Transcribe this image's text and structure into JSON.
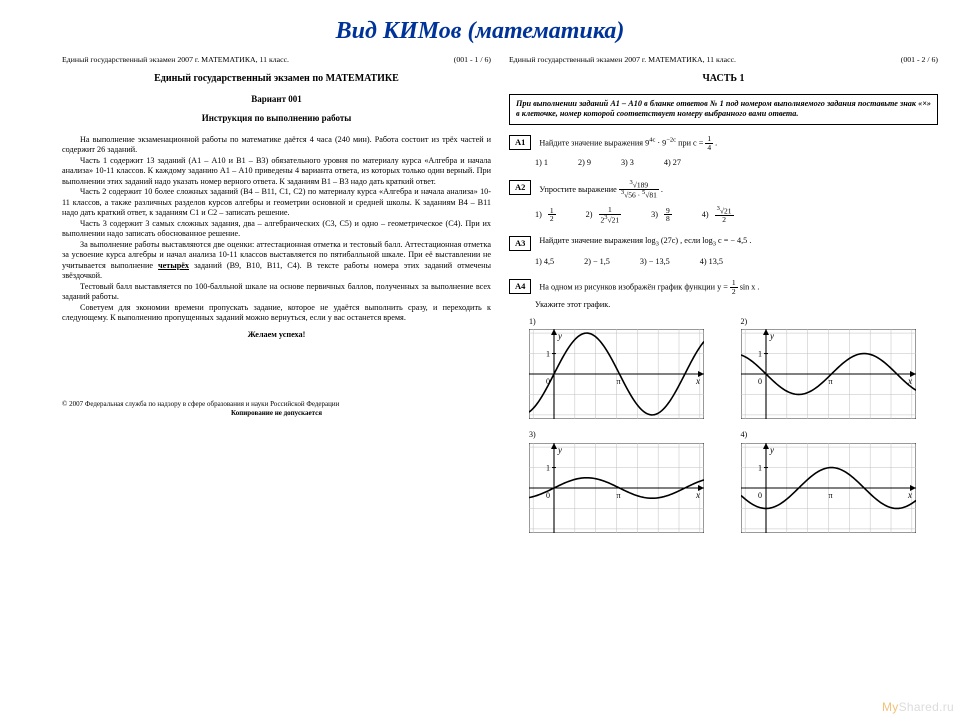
{
  "slide": {
    "title": "Вид КИМов (математика)"
  },
  "left": {
    "header_left": "Единый государственный экзамен 2007 г.   МАТЕМАТИКА, 11 класс.",
    "header_right": "(001 - 1 / 6)",
    "title": "Единый государственный экзамен по МАТЕМАТИКЕ",
    "variant": "Вариант 001",
    "instr_title": "Инструкция по выполнению работы",
    "p1": "На выполнение экзаменационной работы по математике даётся 4 часа (240 мин). Работа состоит из трёх частей и содержит 26 заданий.",
    "p2": "Часть 1 содержит 13 заданий (А1 – А10 и В1 – В3) обязательного уровня по материалу курса «Алгебра и начала анализа» 10-11 классов. К каждому заданию А1 – А10 приведены 4 варианта ответа, из которых только один верный. При выполнении этих заданий надо указать номер верного ответа. К заданиям В1 – В3 надо дать краткий ответ.",
    "p3": "Часть 2 содержит 10 более сложных заданий (В4 – В11, С1, С2) по материалу курса «Алгебра и начала анализа» 10-11 классов, а также различных разделов курсов алгебры и геометрии основной и средней школы. К заданиям В4 – В11 надо дать краткий ответ, к заданиям С1 и С2 – записать решение.",
    "p4": "Часть 3 содержит 3 самых сложных задания, два – алгебраических (С3, С5) и одно – геометрическое (С4). При их выполнении надо записать обоснованное решение.",
    "p5_a": "За выполнение работы выставляются две оценки: аттестационная отметка и тестовый балл. Аттестационная отметка за усвоение курса алгебры и начал анализа 10-11 классов выставляется по пятибалльной шкале. При её выставлении не учитывается выполнение ",
    "p5_b": "четырёх",
    "p5_c": " заданий (В9, В10, В11, С4). В тексте работы номера этих заданий отмечены звёздочкой.",
    "p6": "Тестовый балл выставляется по 100-балльной шкале на основе первичных баллов, полученных за выполнение всех заданий работы.",
    "p7": "Советуем для экономии времени пропускать задание, которое не удаётся выполнить сразу, и переходить к следующему. К выполнению пропущенных заданий можно вернуться, если у вас останется время.",
    "wish": "Желаем успеха!",
    "copyright1": "© 2007 Федеральная служба по надзору в сфере образования и науки Российской Федерации",
    "copyright2": "Копирование не допускается"
  },
  "right": {
    "header_left": "Единый государственный экзамен 2007 г.   МАТЕМАТИКА, 11 класс.",
    "header_right": "(001 - 2 / 6)",
    "part_title": "ЧАСТЬ 1",
    "box": "При выполнении заданий А1 – А10 в бланке ответов № 1 под номером выполняемого задания поставьте знак «×» в клеточке, номер которой соответствует номеру выбранного вами ответа.",
    "A1": {
      "num": "A1",
      "text_a": "Найдите значение выражения  9",
      "exp1": "4c",
      "dot": " · 9",
      "exp2": "−2c",
      "text_b": "  при  c = ",
      "frac_n": "1",
      "frac_d": "4",
      "tail": " .",
      "o1": "1)  1",
      "o2": "2)  9",
      "o3": "3)  3",
      "o4": "4)  27"
    },
    "A2": {
      "num": "A2",
      "text": "Упростите выражение ",
      "big_n_root": "3",
      "big_n_rad": "189",
      "big_d_r1_root": "3",
      "big_d_r1_rad": "56",
      "big_d_r2_root": "5",
      "big_d_r2_rad": "81",
      "tail": " .",
      "o1_n": "1",
      "o1_d": "2",
      "o2_n": "1",
      "o2_d_a": "2",
      "o2_root": "3",
      "o2_rad": "21",
      "o3_n": "9",
      "o3_d": "8",
      "o4_root": "3",
      "o4_rad": "21",
      "o4_d": "2"
    },
    "A3": {
      "num": "A3",
      "text_a": "Найдите значение выражения  log",
      "base": "3",
      "arg": " (27c) , если  log",
      "base2": "3",
      "tail": " c = − 4,5 .",
      "o1": "1)  4,5",
      "o2": "2)  − 1,5",
      "o3": "3)  − 13,5",
      "o4": "4)  13,5"
    },
    "A4": {
      "num": "A4",
      "text_a": "На одном из рисунков изображён график функции  y = ",
      "frac_n": "1",
      "frac_d": "2",
      "text_b": " sin x .",
      "prompt": "Укажите этот график.",
      "g1": "1)",
      "g2": "2)",
      "g3": "3)",
      "g4": "4)"
    },
    "graphs": {
      "width": 175,
      "height": 90,
      "bg": "#ffffff",
      "grid": "#bfbfbf",
      "axis": "#000000",
      "curve": "#000000",
      "xmin": -1.2,
      "xmax": 7.2,
      "ymin": -2.2,
      "ymax": 2.2,
      "xticks": [
        0,
        3.1416,
        6.2832
      ],
      "xtick_labels": [
        "0",
        "π",
        ""
      ],
      "yticks": [
        -2,
        -1,
        0,
        1,
        2
      ],
      "ytick_show": [
        1
      ],
      "curves": {
        "1": {
          "amp": 2.0,
          "phase": 0.0,
          "yshift": 0.0
        },
        "2": {
          "amp": -1.0,
          "phase": 0.0,
          "yshift": 0.0
        },
        "3": {
          "amp": 0.5,
          "phase": 0.0,
          "yshift": 0.0
        },
        "4": {
          "amp": 1.0,
          "phase": -1.5708,
          "yshift": 0.0
        }
      }
    }
  },
  "watermark": {
    "a": "My",
    "b": "Shared",
    "c": ".ru"
  }
}
